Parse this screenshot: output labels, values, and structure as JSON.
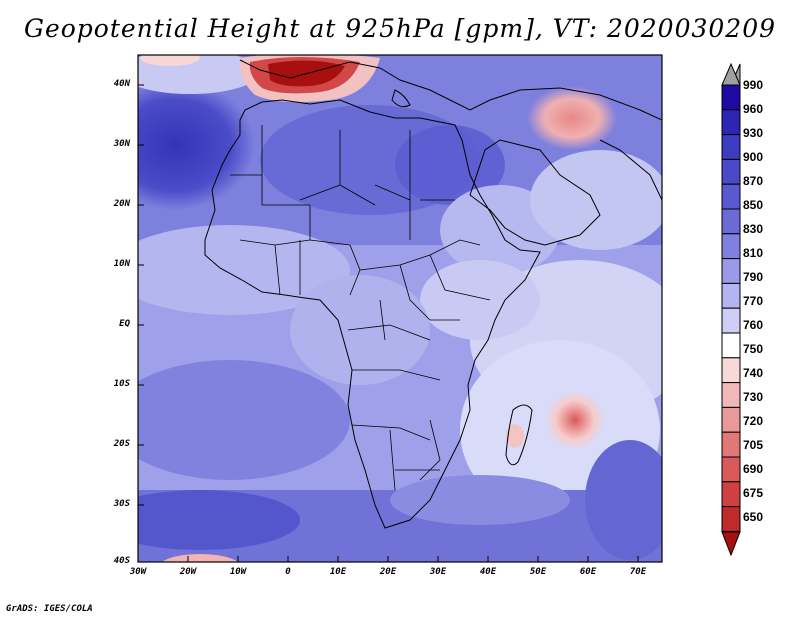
{
  "title": "Geopotential Height at 925hPa [gpm], VT: 2020030209",
  "credit": "GrADS: IGES/COLA",
  "latitude_labels": [
    "40N",
    "30N",
    "20N",
    "10N",
    "EQ",
    "10S",
    "20S",
    "30S",
    "40S"
  ],
  "longitude_labels": [
    "30W",
    "20W",
    "10W",
    "0",
    "10E",
    "20E",
    "30E",
    "40E",
    "50E",
    "60E",
    "70E"
  ],
  "colorbar": {
    "levels": [
      "990",
      "960",
      "930",
      "900",
      "870",
      "850",
      "830",
      "810",
      "790",
      "770",
      "760",
      "750",
      "740",
      "730",
      "720",
      "705",
      "690",
      "675",
      "650"
    ],
    "colors": [
      "#a0a0a0",
      "#1e0aa0",
      "#2e25b4",
      "#3c3cc0",
      "#4a4ac8",
      "#5a5ad0",
      "#6b6bd8",
      "#8080e0",
      "#9a9ae8",
      "#b4b4f0",
      "#ceceF6",
      "#ffffff",
      "#f8d8d8",
      "#f0b8b8",
      "#e89a9a",
      "#e07878",
      "#d85a5a",
      "#d04040",
      "#c02a2a",
      "#a81010"
    ]
  },
  "map_colors": {
    "deep": "#3f41c4",
    "mid": "#6668d8",
    "light": "#8a8ce2",
    "pale": "#b2b4ee",
    "faint": "#d2d4f6",
    "pink": "#f0b4b4",
    "red": "#e06060",
    "darkred": "#b81818"
  }
}
